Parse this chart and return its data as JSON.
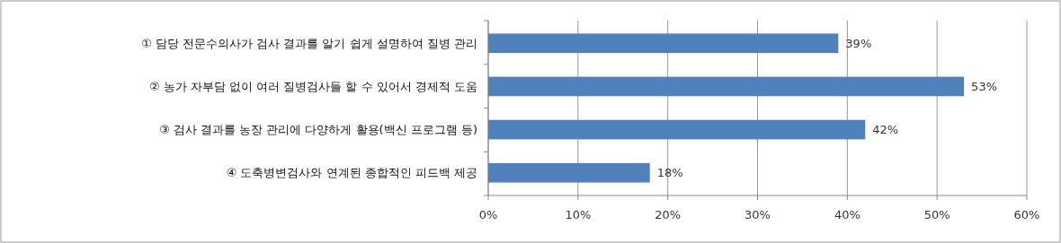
{
  "chart_data": {
    "type": "bar",
    "orientation": "horizontal",
    "categories": [
      "① 담당 전문수의사가 검사 결과를 알기 쉽게 설명하여 질병 관리",
      "② 농가 자부담 없이 여러 질병검사들 할 수 있어서 경제적 도움",
      "③ 검사 결과를 농장 관리에 다양하게 활용(백신 프로그램 등)",
      "④ 도축병변검사와 연계된 종합적인 피드백 제공"
    ],
    "values": [
      39,
      53,
      42,
      18
    ],
    "value_labels": [
      "39%",
      "53%",
      "42%",
      "18%"
    ],
    "color": "#4f81bd",
    "xlim": [
      0,
      60
    ],
    "xticks": [
      {
        "value": 0,
        "label": "0%"
      },
      {
        "value": 10,
        "label": "10%"
      },
      {
        "value": 20,
        "label": "20%"
      },
      {
        "value": 30,
        "label": "30%"
      },
      {
        "value": 40,
        "label": "40%"
      },
      {
        "value": 50,
        "label": "50%"
      },
      {
        "value": 60,
        "label": "60%"
      }
    ],
    "grid": "x"
  }
}
